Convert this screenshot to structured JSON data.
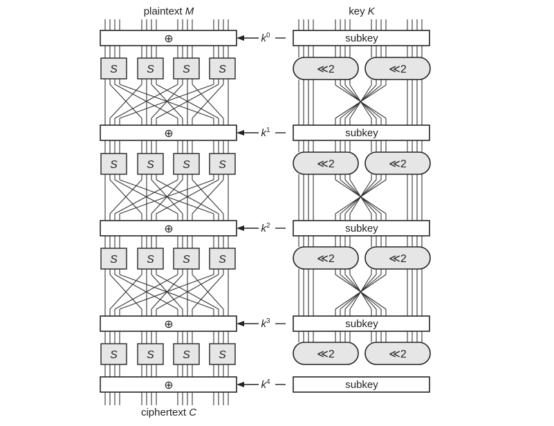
{
  "labels": {
    "plaintext": "plaintext",
    "plaintext_var": "M",
    "key": "key",
    "key_var": "K",
    "ciphertext": "ciphertext",
    "ciphertext_var": "C"
  },
  "xor_symbol": "⊕",
  "sbox_label": "S",
  "subkey_label": "subkey",
  "rotate_label": "≪2",
  "round_keys": [
    {
      "base": "k",
      "sup": "0"
    },
    {
      "base": "k",
      "sup": "1"
    },
    {
      "base": "k",
      "sup": "2"
    },
    {
      "base": "k",
      "sup": "3"
    },
    {
      "base": "k",
      "sup": "4"
    }
  ],
  "sbox_count_per_round": 4,
  "sbox_rounds": 4,
  "rotation_rounds": 4
}
